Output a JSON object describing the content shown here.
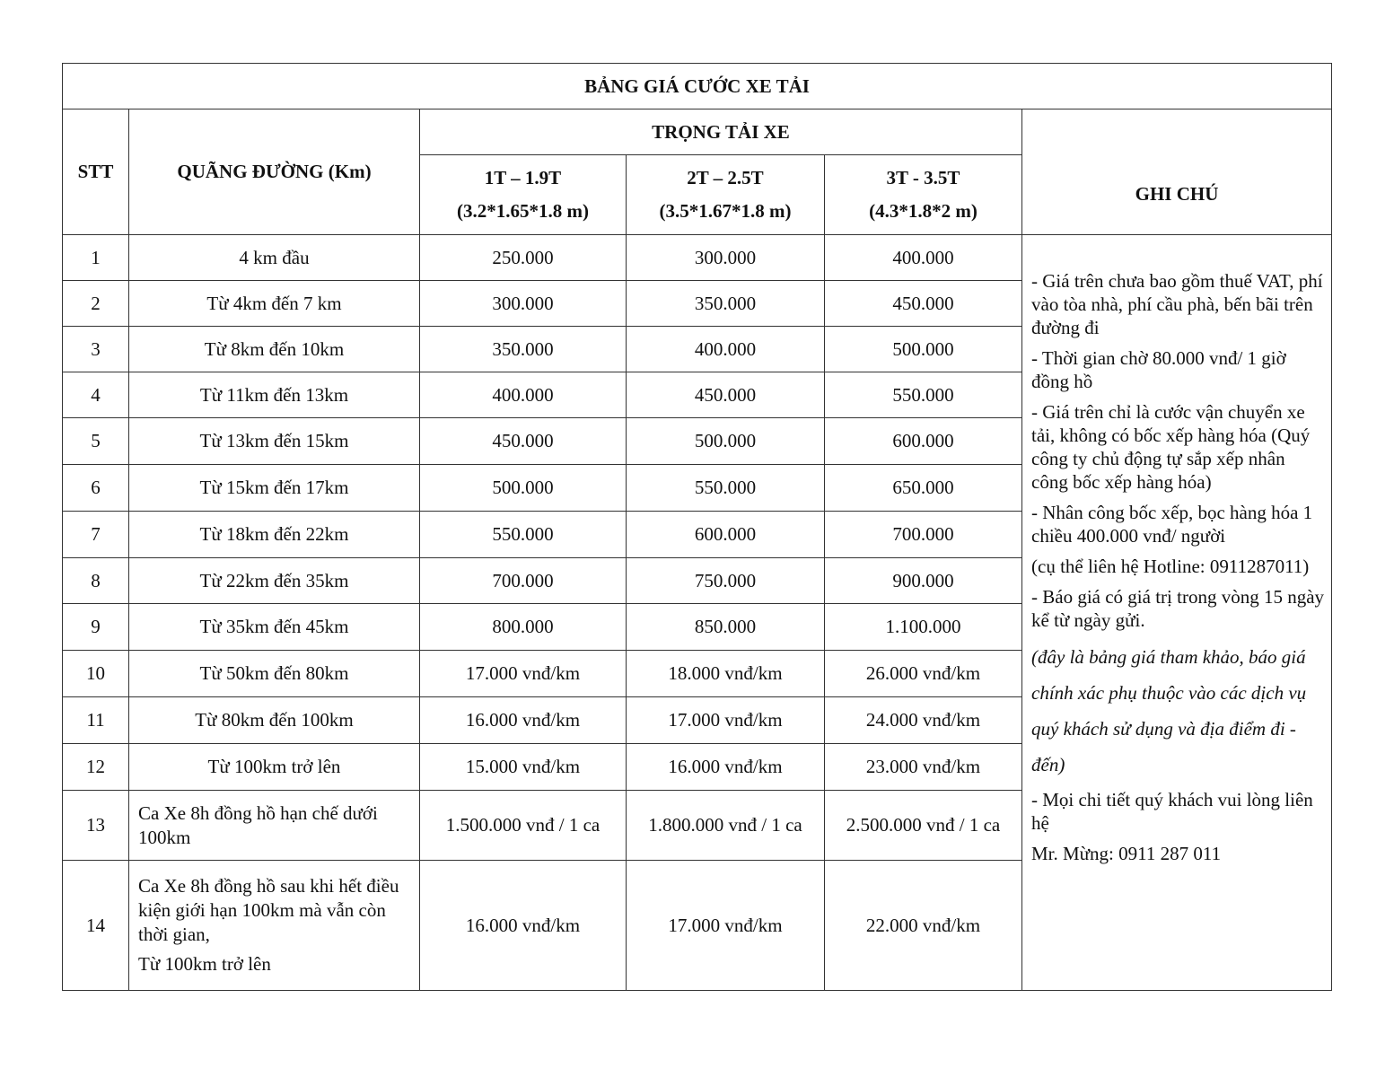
{
  "title": "BẢNG GIÁ CƯỚC XE TẢI",
  "headers": {
    "stt": "STT",
    "route": "QUÃNG ĐƯỜNG (Km)",
    "load_group": "TRỌNG TẢI XE",
    "notes": "GHI CHÚ",
    "vehicles": [
      {
        "load": "1T – 1.9T",
        "size": "(3.2*1.65*1.8 m)"
      },
      {
        "load": "2T – 2.5T",
        "size": "(3.5*1.67*1.8 m)"
      },
      {
        "load": "3T - 3.5T",
        "size": "(4.3*1.8*2 m)"
      }
    ]
  },
  "rows": [
    {
      "stt": "1",
      "route": [
        "4 km đầu"
      ],
      "prices": [
        "250.000",
        "300.000",
        "400.000"
      ]
    },
    {
      "stt": "2",
      "route": [
        "Từ 4km đến 7 km"
      ],
      "prices": [
        "300.000",
        "350.000",
        "450.000"
      ]
    },
    {
      "stt": "3",
      "route": [
        "Từ 8km đến 10km"
      ],
      "prices": [
        "350.000",
        "400.000",
        "500.000"
      ]
    },
    {
      "stt": "4",
      "route": [
        "Từ 11km đến 13km"
      ],
      "prices": [
        "400.000",
        "450.000",
        "550.000"
      ]
    },
    {
      "stt": "5",
      "route": [
        "Từ 13km đến 15km"
      ],
      "prices": [
        "450.000",
        "500.000",
        "600.000"
      ]
    },
    {
      "stt": "6",
      "route": [
        "Từ 15km đến 17km"
      ],
      "prices": [
        "500.000",
        "550.000",
        "650.000"
      ]
    },
    {
      "stt": "7",
      "route": [
        "Từ 18km đến 22km"
      ],
      "prices": [
        "550.000",
        "600.000",
        "700.000"
      ]
    },
    {
      "stt": "8",
      "route": [
        "Từ 22km đến 35km"
      ],
      "prices": [
        "700.000",
        "750.000",
        "900.000"
      ]
    },
    {
      "stt": "9",
      "route": [
        "Từ 35km đến 45km"
      ],
      "prices": [
        "800.000",
        "850.000",
        "1.100.000"
      ]
    },
    {
      "stt": "10",
      "route": [
        "Từ 50km đến 80km"
      ],
      "prices": [
        "17.000 vnđ/km",
        "18.000 vnđ/km",
        "26.000 vnđ/km"
      ]
    },
    {
      "stt": "11",
      "route": [
        "Từ 80km đến 100km"
      ],
      "prices": [
        "16.000 vnđ/km",
        "17.000 vnđ/km",
        "24.000 vnđ/km"
      ]
    },
    {
      "stt": "12",
      "route": [
        "Từ 100km trở lên"
      ],
      "prices": [
        "15.000 vnđ/km",
        "16.000 vnđ/km",
        "23.000 vnđ/km"
      ]
    },
    {
      "stt": "13",
      "route": [
        "Ca Xe 8h đồng hồ hạn chế dưới 100km"
      ],
      "prices": [
        "1.500.000 vnđ / 1 ca",
        "1.800.000 vnđ / 1 ca",
        "2.500.000 vnđ / 1 ca"
      ]
    },
    {
      "stt": "14",
      "route": [
        "Ca Xe 8h đồng hồ sau khi hết điều kiện giới hạn 100km mà vẫn còn thời gian,",
        "Từ 100km trở lên"
      ],
      "prices": [
        "16.000 vnđ/km",
        "17.000 vnđ/km",
        "22.000 vnđ/km"
      ]
    }
  ],
  "notes": [
    {
      "text": "- Giá trên chưa bao gồm thuế VAT, phí vào tòa nhà, phí cầu phà, bến bãi trên đường đi",
      "italic": false
    },
    {
      "text": "- Thời gian chờ 80.000 vnđ/ 1 giờ đồng hồ",
      "italic": false
    },
    {
      "text": "- Giá trên chỉ là cước vận chuyển xe tải, không có bốc xếp hàng hóa (Quý công ty chủ động tự sắp xếp nhân công bốc xếp hàng hóa)",
      "italic": false
    },
    {
      "text": "- Nhân công bốc xếp, bọc hàng hóa 1 chiều 400.000 vnđ/ người",
      "italic": false
    },
    {
      "text": "(cụ thể liên hệ Hotline: 0911287011)",
      "italic": false
    },
    {
      "text": "- Báo giá có giá trị trong vòng 15 ngày kể từ ngày gửi.",
      "italic": false
    },
    {
      "text": "(đây là bảng giá tham khảo, báo giá chính xác phụ thuộc vào các dịch vụ quý khách sử dụng và địa điểm đi - đến)",
      "italic": true
    },
    {
      "text": "- Mọi chi tiết quý khách vui lòng liên hệ",
      "italic": false
    },
    {
      "text": "Mr. Mừng:  0911 287 011",
      "italic": false
    }
  ]
}
